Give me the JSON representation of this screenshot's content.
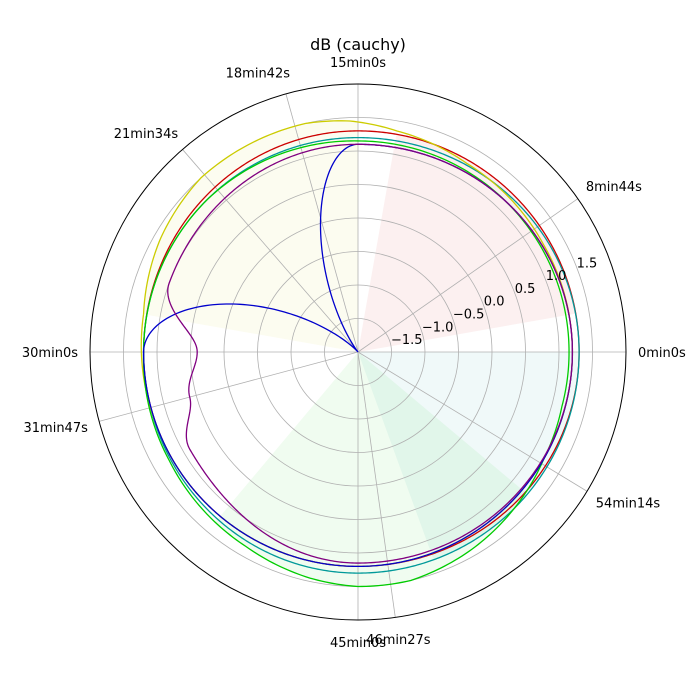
{
  "chart_data": {
    "type": "polar-line",
    "title": "dB (cauchy)",
    "theta_unit": "degrees",
    "r_range": [
      -2.0,
      2.0
    ],
    "r_ticks": [
      {
        "value": -1.5,
        "label": "−1.5"
      },
      {
        "value": -1.0,
        "label": "−1.0"
      },
      {
        "value": -0.5,
        "label": "−0.5"
      },
      {
        "value": 0.0,
        "label": "0.0"
      },
      {
        "value": 0.5,
        "label": "0.5"
      },
      {
        "value": 1.0,
        "label": "1.0"
      },
      {
        "value": 1.5,
        "label": "1.5"
      }
    ],
    "r_label_angle": 22.5,
    "theta_ticks": [
      {
        "angle": 0,
        "label": "0min0s"
      },
      {
        "angle": 34.9,
        "label": "8min44s"
      },
      {
        "angle": 90,
        "label": "15min0s"
      },
      {
        "angle": 105.6,
        "label": "18min42s"
      },
      {
        "angle": 130.9,
        "label": "21min34s"
      },
      {
        "angle": 180,
        "label": "30min0s"
      },
      {
        "angle": 195,
        "label": "31min47s"
      },
      {
        "angle": 270,
        "label": "45min0s"
      },
      {
        "angle": 278,
        "label": "46min27s"
      },
      {
        "angle": 328.7,
        "label": "54min14s"
      }
    ],
    "grid": true,
    "series": [
      {
        "color": "#cc0000",
        "kind": "circle",
        "theta": [
          0,
          90,
          180,
          270
        ],
        "r": [
          1.3,
          1.3,
          1.2,
          1.2
        ],
        "fill": "#cc0000",
        "fill_arc": [
          10,
          80
        ]
      },
      {
        "color": "#009999",
        "kind": "circle",
        "theta": [
          0,
          90,
          180,
          270
        ],
        "r": [
          1.3,
          1.2,
          1.2,
          1.3
        ],
        "fill": "#009999",
        "fill_arc": [
          -70,
          0
        ]
      },
      {
        "color": "#cccc00",
        "kind": "polyline",
        "theta": [
          0,
          30,
          60,
          80,
          92,
          103,
          116,
          132,
          150,
          170,
          200,
          240,
          270,
          300,
          330,
          360
        ],
        "r": [
          1.2,
          1.2,
          1.25,
          1.35,
          1.45,
          1.5,
          1.5,
          1.5,
          1.4,
          1.25,
          1.2,
          1.2,
          1.2,
          1.2,
          1.2,
          1.2
        ],
        "fill": "#cccc00",
        "fill_arc": [
          90,
          170
        ]
      },
      {
        "color": "#00cc00",
        "kind": "polyline",
        "theta": [
          0,
          45,
          90,
          135,
          180,
          210,
          240,
          258,
          270,
          283,
          300,
          315,
          330,
          345,
          360
        ],
        "r": [
          1.15,
          1.15,
          1.15,
          1.2,
          1.2,
          1.25,
          1.35,
          1.45,
          1.5,
          1.5,
          1.4,
          1.3,
          1.2,
          1.15,
          1.15
        ],
        "fill": "#00cc00",
        "fill_arc": [
          230,
          320
        ]
      },
      {
        "color": "#0000cc",
        "kind": "petal",
        "theta": [
          0,
          90,
          130,
          180,
          270
        ],
        "r": [
          1.2,
          1.1,
          -2.0,
          1.2,
          1.2
        ],
        "fill": "#0000cc",
        "fill_arc": [
          118,
          140
        ]
      },
      {
        "color": "#800080",
        "kind": "dented",
        "theta": [
          0,
          90,
          160,
          180,
          195,
          210,
          270
        ],
        "r": [
          1.2,
          1.1,
          1.0,
          0.4,
          0.6,
          0.9,
          1.15
        ],
        "fill": null,
        "fill_arc": null
      }
    ]
  }
}
